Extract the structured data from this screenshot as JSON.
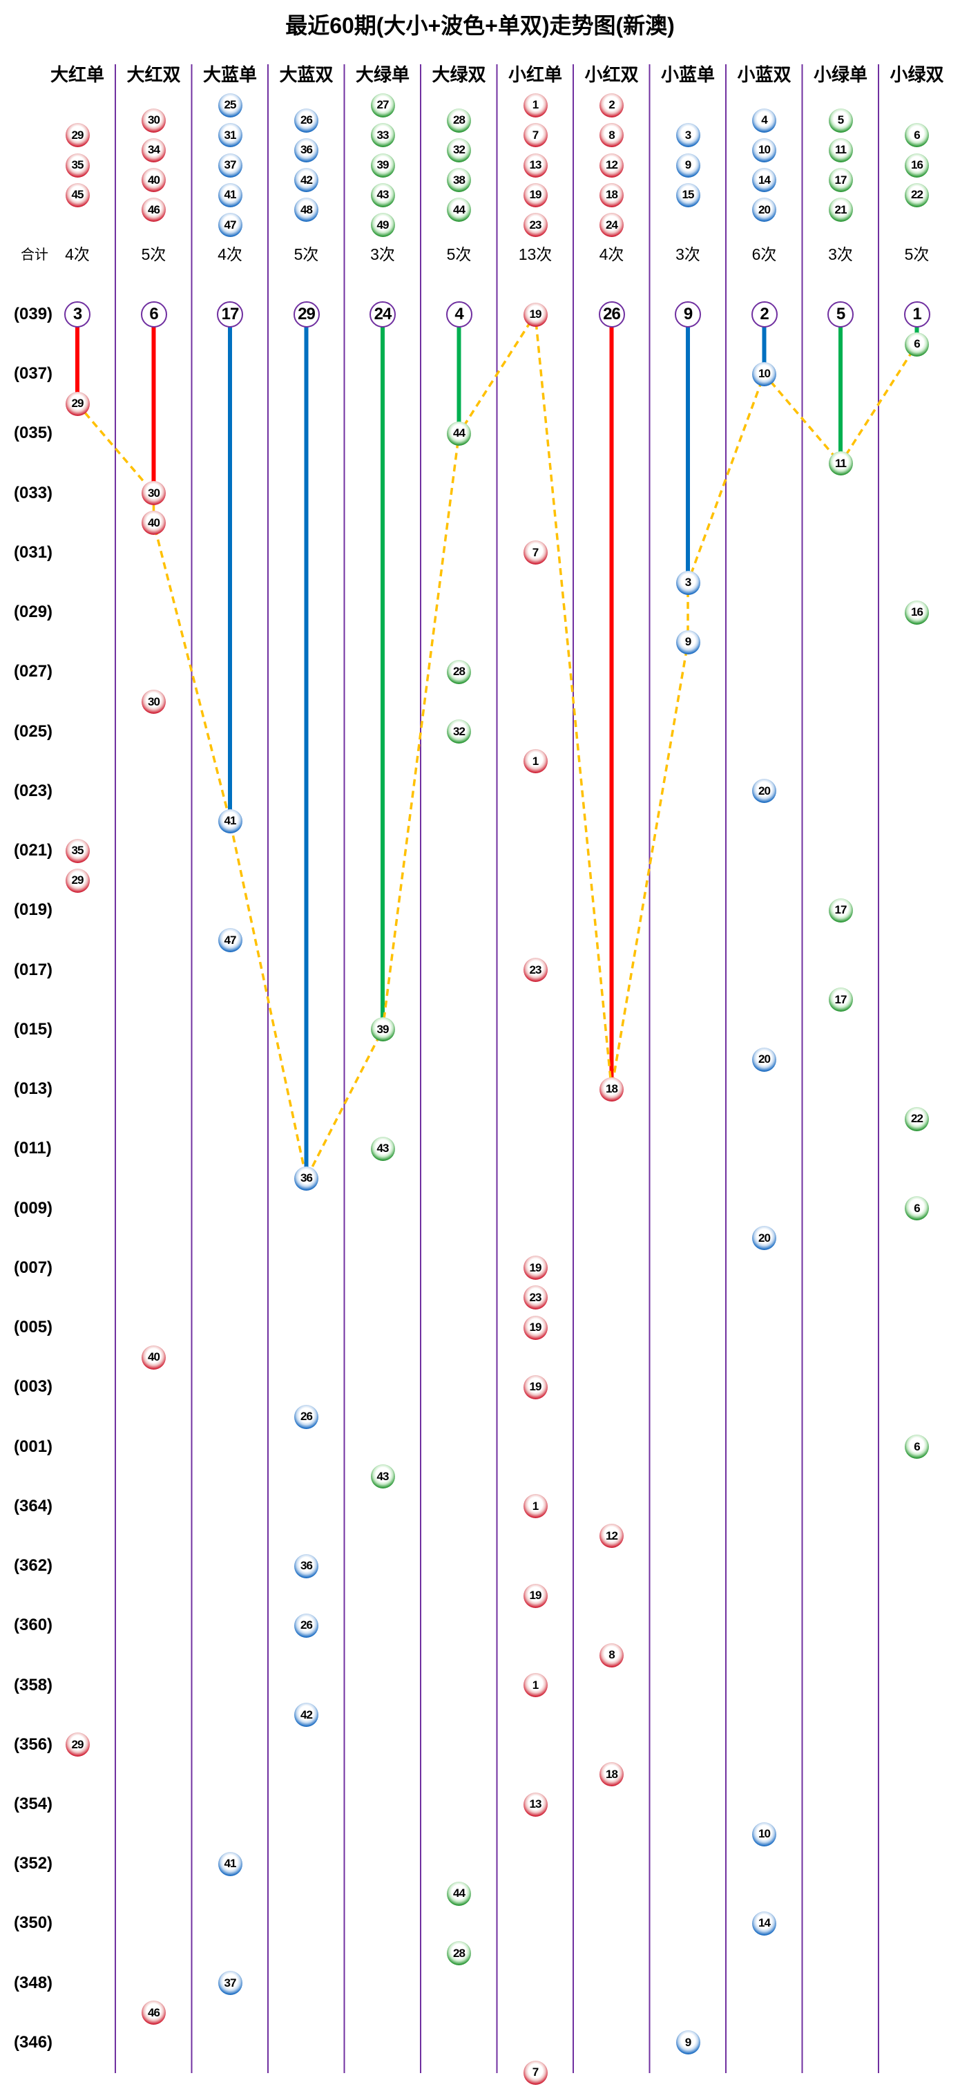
{
  "chart_data": {
    "type": "line",
    "title": "最近60期(大小+波色+单双)走势图(新澳)",
    "total_label": "合计",
    "colors": {
      "red": "#ff0000",
      "blue": "#0070c0",
      "green": "#00b050",
      "grid": "#7030a0",
      "path": "#ffc000"
    },
    "columns": [
      {
        "label": "大红单",
        "color": "red",
        "numbers": [
          29,
          35,
          45
        ],
        "count": "4次",
        "omission": 3
      },
      {
        "label": "大红双",
        "color": "red",
        "numbers": [
          30,
          34,
          40,
          46
        ],
        "count": "5次",
        "omission": 6
      },
      {
        "label": "大蓝单",
        "color": "blue",
        "numbers": [
          25,
          31,
          37,
          41,
          47
        ],
        "count": "4次",
        "omission": 17
      },
      {
        "label": "大蓝双",
        "color": "blue",
        "numbers": [
          26,
          36,
          42,
          48
        ],
        "count": "5次",
        "omission": 29
      },
      {
        "label": "大绿单",
        "color": "green",
        "numbers": [
          27,
          33,
          39,
          43,
          49
        ],
        "count": "3次",
        "omission": 24
      },
      {
        "label": "大绿双",
        "color": "green",
        "numbers": [
          28,
          32,
          38,
          44
        ],
        "count": "5次",
        "omission": 4
      },
      {
        "label": "小红单",
        "color": "red",
        "numbers": [
          1,
          7,
          13,
          19,
          23
        ],
        "count": "13次",
        "omission": null
      },
      {
        "label": "小红双",
        "color": "red",
        "numbers": [
          2,
          8,
          12,
          18,
          24
        ],
        "count": "4次",
        "omission": 26
      },
      {
        "label": "小蓝单",
        "color": "blue",
        "numbers": [
          3,
          9,
          15
        ],
        "count": "3次",
        "omission": 9
      },
      {
        "label": "小蓝双",
        "color": "blue",
        "numbers": [
          4,
          10,
          14,
          20
        ],
        "count": "6次",
        "omission": 2
      },
      {
        "label": "小绿单",
        "color": "green",
        "numbers": [
          5,
          11,
          17,
          21
        ],
        "count": "3次",
        "omission": 5
      },
      {
        "label": "小绿双",
        "color": "green",
        "numbers": [
          6,
          16,
          22
        ],
        "count": "5次",
        "omission": 1
      }
    ],
    "rows": [
      {
        "label": "(039)",
        "col": 6,
        "n": 19
      },
      {
        "col": 11,
        "n": 6
      },
      {
        "label": "(037)",
        "col": 9,
        "n": 10
      },
      {
        "col": 0,
        "n": 29
      },
      {
        "label": "(035)",
        "col": 5,
        "n": 44
      },
      {
        "col": 10,
        "n": 11
      },
      {
        "label": "(033)",
        "col": 1,
        "n": 30
      },
      {
        "col": 1,
        "n": 40
      },
      {
        "label": "(031)",
        "col": 6,
        "n": 7
      },
      {
        "col": 8,
        "n": 3
      },
      {
        "label": "(029)",
        "col": 11,
        "n": 16
      },
      {
        "col": 8,
        "n": 9
      },
      {
        "label": "(027)",
        "col": 5,
        "n": 28
      },
      {
        "col": 1,
        "n": 30
      },
      {
        "label": "(025)",
        "col": 5,
        "n": 32
      },
      {
        "col": 6,
        "n": 1
      },
      {
        "label": "(023)",
        "col": 9,
        "n": 20
      },
      {
        "col": 2,
        "n": 41
      },
      {
        "label": "(021)",
        "col": 0,
        "n": 35
      },
      {
        "col": 0,
        "n": 29
      },
      {
        "label": "(019)",
        "col": 10,
        "n": 17
      },
      {
        "col": 2,
        "n": 47
      },
      {
        "label": "(017)",
        "col": 6,
        "n": 23
      },
      {
        "col": 10,
        "n": 17
      },
      {
        "label": "(015)",
        "col": 4,
        "n": 39
      },
      {
        "col": 9,
        "n": 20
      },
      {
        "label": "(013)",
        "col": 7,
        "n": 18
      },
      {
        "col": 11,
        "n": 22
      },
      {
        "label": "(011)",
        "col": 4,
        "n": 43
      },
      {
        "col": 3,
        "n": 36
      },
      {
        "label": "(009)",
        "col": 11,
        "n": 6
      },
      {
        "col": 9,
        "n": 20
      },
      {
        "label": "(007)",
        "col": 6,
        "n": 19
      },
      {
        "col": 6,
        "n": 23
      },
      {
        "label": "(005)",
        "col": 6,
        "n": 19
      },
      {
        "col": 1,
        "n": 40
      },
      {
        "label": "(003)",
        "col": 6,
        "n": 19
      },
      {
        "col": 3,
        "n": 26
      },
      {
        "label": "(001)",
        "col": 11,
        "n": 6
      },
      {
        "col": 4,
        "n": 43
      },
      {
        "label": "(364)",
        "col": 6,
        "n": 1
      },
      {
        "col": 7,
        "n": 12
      },
      {
        "label": "(362)",
        "col": 3,
        "n": 36
      },
      {
        "col": 6,
        "n": 19
      },
      {
        "label": "(360)",
        "col": 3,
        "n": 26
      },
      {
        "col": 7,
        "n": 8
      },
      {
        "label": "(358)",
        "col": 6,
        "n": 1
      },
      {
        "col": 3,
        "n": 42
      },
      {
        "label": "(356)",
        "col": 0,
        "n": 29
      },
      {
        "col": 7,
        "n": 18
      },
      {
        "label": "(354)",
        "col": 6,
        "n": 13
      },
      {
        "col": 9,
        "n": 10
      },
      {
        "label": "(352)",
        "col": 2,
        "n": 41
      },
      {
        "col": 5,
        "n": 44
      },
      {
        "label": "(350)",
        "col": 9,
        "n": 14
      },
      {
        "col": 5,
        "n": 28
      },
      {
        "label": "(348)",
        "col": 2,
        "n": 37
      },
      {
        "col": 1,
        "n": 46
      },
      {
        "label": "(346)",
        "col": 8,
        "n": 9
      },
      {
        "col": 6,
        "n": 7
      }
    ],
    "path_rows": [
      3,
      6,
      7,
      17,
      29,
      24,
      4,
      0,
      26,
      11,
      9,
      2,
      5,
      1
    ]
  }
}
